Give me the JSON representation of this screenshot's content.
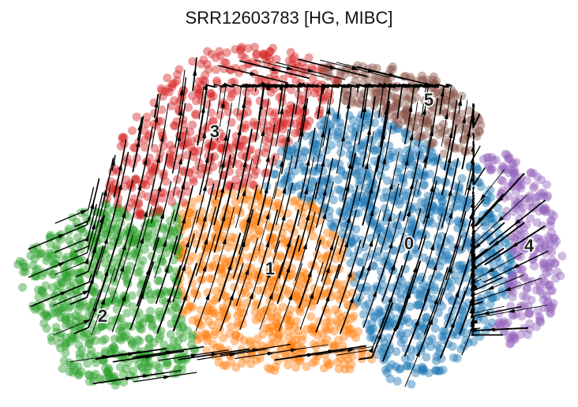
{
  "chart_data": {
    "type": "scatter",
    "subtype": "umap-rna-velocity-stream",
    "title": "SRR12603783 [HG, MIBC]",
    "xlabel": "",
    "ylabel": "",
    "axes_visible": false,
    "grid": false,
    "legend": "on data",
    "clusters": [
      {
        "label": "0",
        "color": "#1f77b4"
      },
      {
        "label": "1",
        "color": "#ff7f0e"
      },
      {
        "label": "2",
        "color": "#2ca02c"
      },
      {
        "label": "3",
        "color": "#d62728"
      },
      {
        "label": "4",
        "color": "#9467bd"
      },
      {
        "label": "5",
        "color": "#8c564b"
      }
    ],
    "streamlines": {
      "color": "#000000",
      "arrowheads": true
    }
  }
}
